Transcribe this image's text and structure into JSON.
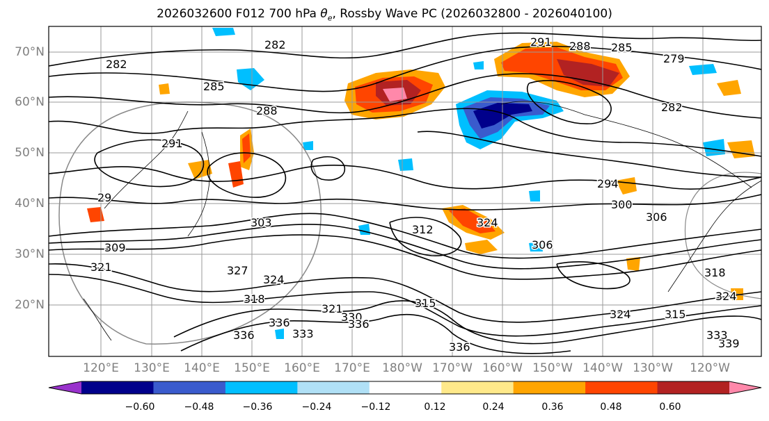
{
  "title": {
    "prefix": "2026032600 F012 700 hPa ",
    "theta": "θ",
    "theta_sub": "e",
    "suffix": ", Rossby Wave PC (2026032800 - 2026040100)"
  },
  "lat_labels": [
    "70°N",
    "60°N",
    "50°N",
    "40°N",
    "30°N",
    "20°N"
  ],
  "lon_labels": [
    "120°E",
    "130°E",
    "140°E",
    "150°E",
    "160°E",
    "170°E",
    "180°W",
    "170°W",
    "160°W",
    "150°W",
    "140°W",
    "130°W",
    "120°W"
  ],
  "colorbar": {
    "colors": [
      "#9932CC",
      "#00008B",
      "#3A5BCD",
      "#00BFFF",
      "#B0E0F6",
      "#FFFFFF",
      "#FFE98A",
      "#FFA500",
      "#FF4500",
      "#B22222",
      "#FF88AA"
    ],
    "ticks": [
      "−0.60",
      "−0.48",
      "−0.36",
      "−0.24",
      "−0.12",
      "0.12",
      "0.24",
      "0.36",
      "0.48",
      "0.60"
    ]
  },
  "contour_labels": [
    "291",
    "288",
    "285",
    "279",
    "282",
    "285",
    "282",
    "282",
    "288",
    "291",
    "294",
    "300",
    "306",
    "303",
    "312",
    "306",
    "29",
    "309",
    "321",
    "327",
    "324",
    "318",
    "321",
    "330",
    "336",
    "336",
    "315",
    "324",
    "318",
    "324",
    "315",
    "333",
    "339",
    "333",
    "336",
    "336",
    "324"
  ],
  "colors": {
    "axis_text": "#808080",
    "frame": "#000000",
    "grid": "#9a9a9a",
    "contour": "#000000"
  }
}
